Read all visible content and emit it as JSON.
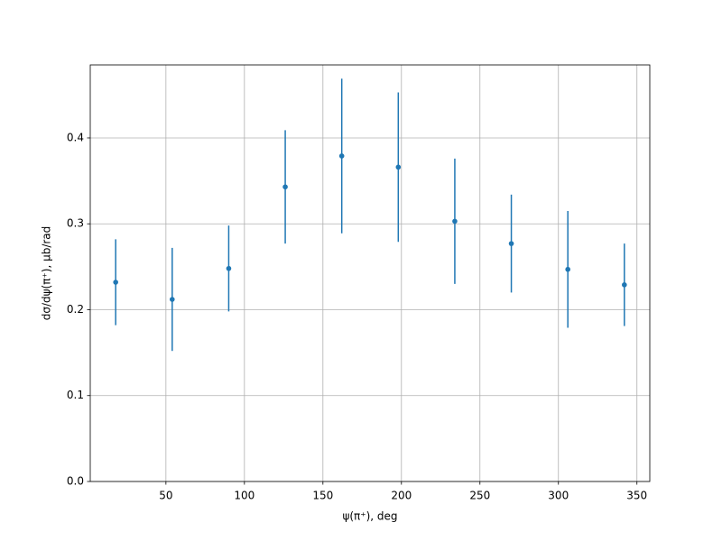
{
  "chart_data": {
    "type": "errorbar",
    "x_label": "ψ(π⁺), deg",
    "y_label": "dσ/dψ(π⁺), μb/rad",
    "x": [
      18,
      54,
      90,
      126,
      162,
      198,
      234,
      270,
      306,
      342
    ],
    "values": [
      0.232,
      0.212,
      0.248,
      0.343,
      0.379,
      0.366,
      0.303,
      0.277,
      0.247,
      0.229
    ],
    "errors": [
      0.05,
      0.06,
      0.05,
      0.066,
      0.09,
      0.087,
      0.073,
      0.057,
      0.068,
      0.048
    ],
    "color": "#1f77b4",
    "xlim": [
      1.8,
      358.2
    ],
    "ylim": [
      0,
      0.485
    ],
    "xticks": [
      50,
      100,
      150,
      200,
      250,
      300,
      350
    ],
    "yticks": [
      {
        "value": 0,
        "label": "0.0"
      },
      0.1,
      0.2,
      0.3,
      0.4
    ],
    "grid": true
  }
}
